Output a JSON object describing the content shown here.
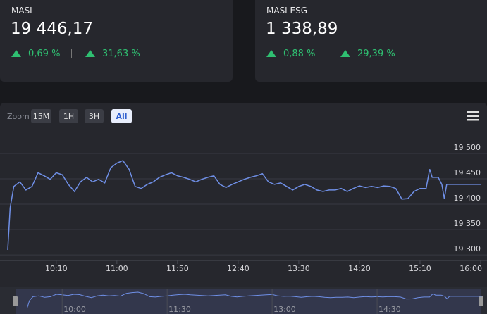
{
  "cards": [
    {
      "name": "MASI",
      "value": "19 446,17",
      "changes": [
        "0,69 %",
        "31,63 %"
      ]
    },
    {
      "name": "MASI ESG",
      "value": "1 338,89",
      "changes": [
        "0,88 %",
        "29,39 %"
      ]
    }
  ],
  "zoom": {
    "label": "Zoom",
    "buttons": [
      "15M",
      "1H",
      "3H",
      "All"
    ],
    "selected": 3
  },
  "chart_data": {
    "type": "line",
    "x": [
      "09:30",
      "09:32",
      "09:35",
      "09:40",
      "09:45",
      "09:50",
      "09:55",
      "10:00",
      "10:05",
      "10:10",
      "10:15",
      "10:20",
      "10:25",
      "10:30",
      "10:35",
      "10:40",
      "10:45",
      "10:50",
      "10:55",
      "11:00",
      "11:05",
      "11:10",
      "11:15",
      "11:20",
      "11:25",
      "11:30",
      "11:35",
      "11:40",
      "11:45",
      "11:50",
      "11:55",
      "12:00",
      "12:05",
      "12:10",
      "12:15",
      "12:20",
      "12:25",
      "12:30",
      "12:35",
      "12:40",
      "12:45",
      "12:50",
      "12:55",
      "13:00",
      "13:05",
      "13:10",
      "13:15",
      "13:20",
      "13:25",
      "13:30",
      "13:35",
      "13:40",
      "13:45",
      "13:50",
      "13:55",
      "14:00",
      "14:05",
      "14:10",
      "14:15",
      "14:20",
      "14:25",
      "14:30",
      "14:35",
      "14:40",
      "14:45",
      "14:50",
      "14:55",
      "15:00",
      "15:05",
      "15:10",
      "15:15",
      "15:18",
      "15:20",
      "15:25",
      "15:28",
      "15:30",
      "15:32",
      "15:40",
      "16:00"
    ],
    "series": [
      {
        "color": "#6f8fe6",
        "values": [
          19310,
          19393,
          19435,
          19444,
          19428,
          19435,
          19462,
          19456,
          19449,
          19462,
          19458,
          19439,
          19425,
          19444,
          19453,
          19444,
          19449,
          19442,
          19472,
          19481,
          19486,
          19469,
          19435,
          19431,
          19439,
          19444,
          19453,
          19458,
          19462,
          19456,
          19453,
          19449,
          19444,
          19449,
          19453,
          19456,
          19439,
          19433,
          19439,
          19444,
          19449,
          19453,
          19456,
          19460,
          19444,
          19439,
          19442,
          19435,
          19428,
          19435,
          19439,
          19435,
          19428,
          19425,
          19428,
          19428,
          19431,
          19425,
          19431,
          19436,
          19433,
          19435,
          19433,
          19436,
          19435,
          19431,
          19410,
          19411,
          19425,
          19431,
          19431,
          19469,
          19453,
          19453,
          19439,
          19411,
          19439,
          19439,
          19439
        ]
      }
    ],
    "xlim": [
      "09:30",
      "16:00"
    ],
    "xticks": [
      "10:10",
      "11:00",
      "11:50",
      "12:40",
      "13:30",
      "14:20",
      "15:10",
      "16:00"
    ],
    "ylim": [
      19289,
      19525
    ],
    "yticks": [
      {
        "value": 19300,
        "label": "19 300"
      },
      {
        "value": 19350,
        "label": "19 350"
      },
      {
        "value": 19400,
        "label": "19 400"
      },
      {
        "value": 19450,
        "label": "19 450"
      },
      {
        "value": 19500,
        "label": "19 500"
      }
    ],
    "grid": true,
    "navigator": {
      "xlim": [
        "09:20",
        "16:00"
      ],
      "xticks": [
        "10:00",
        "11:30",
        "13:00",
        "14:30"
      ]
    }
  }
}
